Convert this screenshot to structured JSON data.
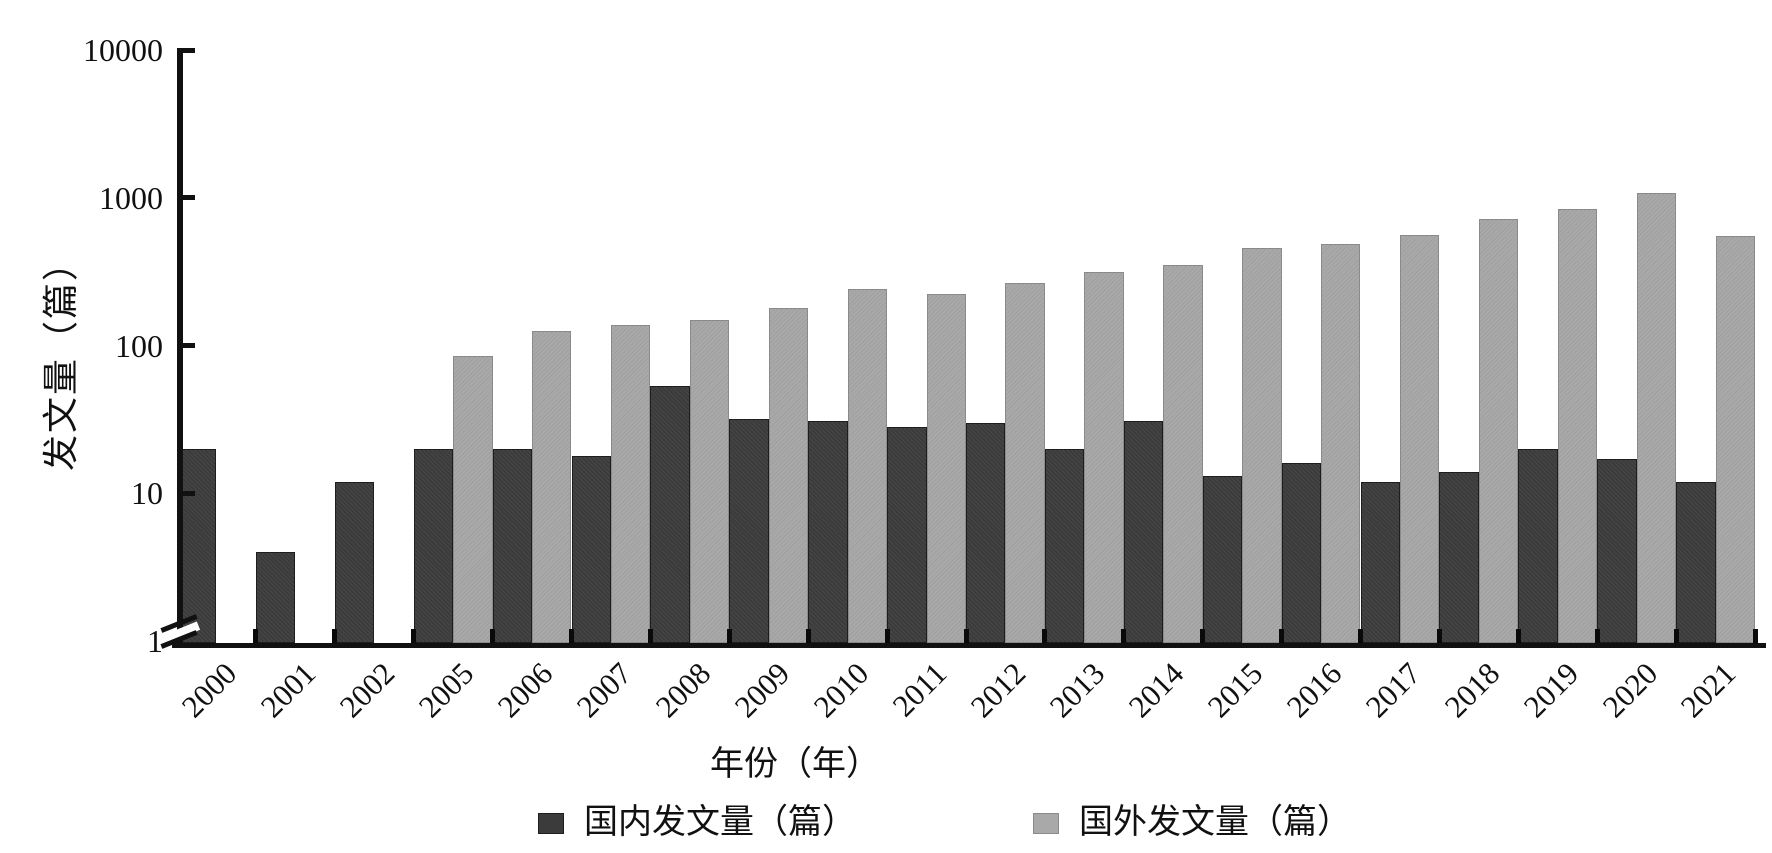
{
  "chart_data": {
    "type": "bar",
    "title": "",
    "xlabel": "年份（年）",
    "ylabel": "发文量（篇）",
    "y_scale": "log",
    "ylim": [
      1,
      10000
    ],
    "y_ticks": [
      "1",
      "10",
      "100",
      "1000",
      "10000"
    ],
    "axis_break_above_origin": true,
    "grid": "off",
    "legend_position": "bottom",
    "categories": [
      "2000",
      "2001",
      "2002",
      "2005",
      "2006",
      "2007",
      "2008",
      "2009",
      "2010",
      "2011",
      "2012",
      "2013",
      "2014",
      "2015",
      "2016",
      "2017",
      "2018",
      "2019",
      "2020",
      "2021"
    ],
    "series": [
      {
        "name": "国内发文量（篇）",
        "color": "#3b3b3b",
        "values": [
          20,
          4,
          12,
          20,
          20,
          18,
          53,
          32,
          31,
          28,
          30,
          20,
          31,
          13,
          16,
          12,
          14,
          20,
          17,
          12
        ]
      },
      {
        "name": "国外发文量（篇）",
        "color": "#a9a9a9",
        "values": [
          null,
          null,
          null,
          85,
          125,
          137,
          150,
          180,
          240,
          225,
          265,
          315,
          350,
          460,
          490,
          560,
          720,
          840,
          1080,
          550
        ]
      }
    ]
  }
}
